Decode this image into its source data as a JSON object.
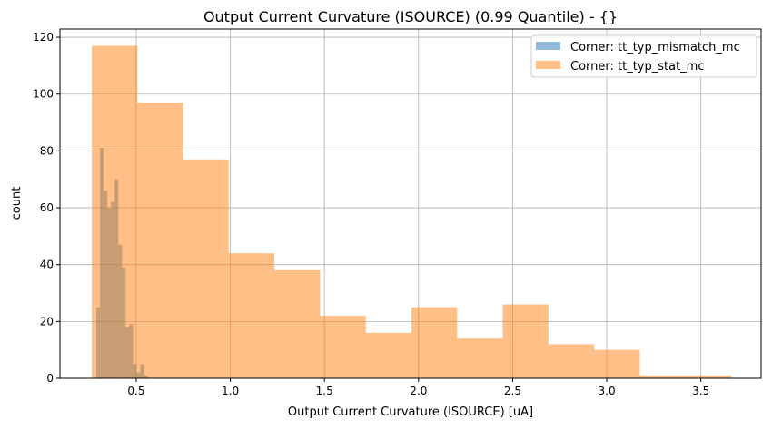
{
  "chart_data": {
    "type": "bar",
    "title": "Output Current Curvature (ISOURCE) (0.99 Quantile) - {}",
    "xlabel": "Output Current Curvature (ISOURCE) [uA]",
    "ylabel": "count",
    "xlim": [
      0.095,
      3.82
    ],
    "ylim": [
      0,
      122.9
    ],
    "xticks": [
      0.5,
      1.0,
      1.5,
      2.0,
      2.5,
      3.0,
      3.5
    ],
    "xtick_labels": [
      "0.5",
      "1.0",
      "1.5",
      "2.0",
      "2.5",
      "3.0",
      "3.5"
    ],
    "yticks": [
      0,
      20,
      40,
      60,
      80,
      100,
      120
    ],
    "ytick_labels": [
      "0",
      "20",
      "40",
      "60",
      "80",
      "100",
      "120"
    ],
    "grid": true,
    "legend_position": "top-right",
    "series": [
      {
        "name": "Corner: tt_typ_mismatch_mc",
        "color": "#1f77b4",
        "opacity": 0.5,
        "bin_start": 0.288,
        "bin_end": 0.561,
        "counts": [
          25,
          81,
          66,
          60,
          62,
          70,
          47,
          39,
          18,
          19,
          5,
          2,
          5,
          1
        ]
      },
      {
        "name": "Corner: tt_typ_stat_mc",
        "color": "#ff7f0e",
        "opacity": 0.5,
        "bin_start": 0.2635,
        "bin_end": 3.661,
        "counts": [
          117,
          97,
          77,
          44,
          38,
          22,
          16,
          25,
          14,
          26,
          12,
          10,
          1,
          1
        ]
      }
    ]
  }
}
